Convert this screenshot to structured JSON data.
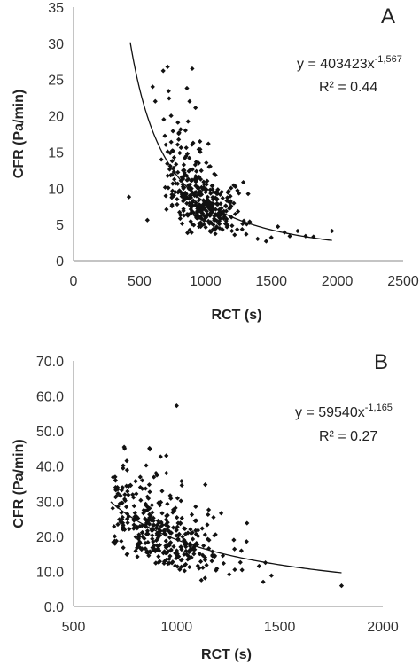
{
  "chart_data": [
    {
      "type": "scatter",
      "panel_label": "A",
      "xlabel": "RCT (s)",
      "ylabel": "CFR (Pa/min)",
      "xlim": [
        0,
        2500
      ],
      "ylim": [
        0,
        35
      ],
      "xticks": [
        0,
        500,
        1000,
        1500,
        2000,
        2500
      ],
      "yticks": [
        0,
        5,
        10,
        15,
        20,
        25,
        30,
        35
      ],
      "ytick_labels": [
        "0",
        "5",
        "10",
        "15",
        "20",
        "25",
        "30",
        "35"
      ],
      "grid": false,
      "marker": "diamond",
      "color": "#111111",
      "fit": {
        "a": 403423,
        "b": -1.567,
        "x_range": [
          430,
          1960
        ]
      },
      "equation": {
        "prefix": "y = 403423x",
        "exponent": "-1,567",
        "r2": "R² = 0.44"
      },
      "cloud": {
        "x_mean": 960,
        "x_sd": 140,
        "x_min": 660,
        "x_max": 1500,
        "noise_sd": 0.3,
        "min_y": 1.5,
        "count": 380,
        "seed": 7
      },
      "points": [
        {
          "x": 420,
          "y": 8.8
        },
        {
          "x": 560,
          "y": 5.6
        },
        {
          "x": 600,
          "y": 24
        },
        {
          "x": 620,
          "y": 22
        },
        {
          "x": 680,
          "y": 26.2
        },
        {
          "x": 900,
          "y": 26.5
        },
        {
          "x": 860,
          "y": 23.8
        },
        {
          "x": 880,
          "y": 22
        },
        {
          "x": 700,
          "y": 16
        },
        {
          "x": 740,
          "y": 20
        },
        {
          "x": 1500,
          "y": 3.2
        },
        {
          "x": 1550,
          "y": 4.7
        },
        {
          "x": 1600,
          "y": 3.9
        },
        {
          "x": 1700,
          "y": 4.1
        },
        {
          "x": 1760,
          "y": 3.4
        },
        {
          "x": 1820,
          "y": 3.3
        },
        {
          "x": 1960,
          "y": 4.1
        },
        {
          "x": 1640,
          "y": 3.4
        }
      ]
    },
    {
      "type": "scatter",
      "panel_label": "B",
      "xlabel": "RCT (s)",
      "ylabel": "CFR (Pa/min)",
      "xlim": [
        500,
        2000
      ],
      "ylim": [
        0,
        70
      ],
      "xticks": [
        500,
        1000,
        1500,
        2000
      ],
      "yticks": [
        0,
        10,
        20,
        30,
        40,
        50,
        60,
        70
      ],
      "ytick_labels": [
        "0.0",
        "10.0",
        "20.0",
        "30.0",
        "40.0",
        "50.0",
        "60.0",
        "70.0"
      ],
      "grid": false,
      "marker": "diamond",
      "color": "#111111",
      "fit": {
        "a": 59540,
        "b": -1.165,
        "x_range": [
          680,
          1800
        ]
      },
      "equation": {
        "prefix": "y = 59540x",
        "exponent": "-1,165",
        "r2": "R² = 0.27"
      },
      "cloud": {
        "x_mean": 930,
        "x_sd": 150,
        "x_min": 690,
        "x_max": 1480,
        "noise_sd": 0.28,
        "min_y": 4,
        "count": 380,
        "seed": 13
      },
      "points": [
        {
          "x": 1000,
          "y": 57.2
        },
        {
          "x": 870,
          "y": 44.8
        },
        {
          "x": 900,
          "y": 38
        },
        {
          "x": 950,
          "y": 43
        },
        {
          "x": 740,
          "y": 39.4
        },
        {
          "x": 1800,
          "y": 5.9
        },
        {
          "x": 1420,
          "y": 7
        },
        {
          "x": 1120,
          "y": 7.5
        },
        {
          "x": 1400,
          "y": 11.5
        },
        {
          "x": 1460,
          "y": 8.8
        },
        {
          "x": 700,
          "y": 20
        },
        {
          "x": 690,
          "y": 28
        }
      ]
    }
  ]
}
